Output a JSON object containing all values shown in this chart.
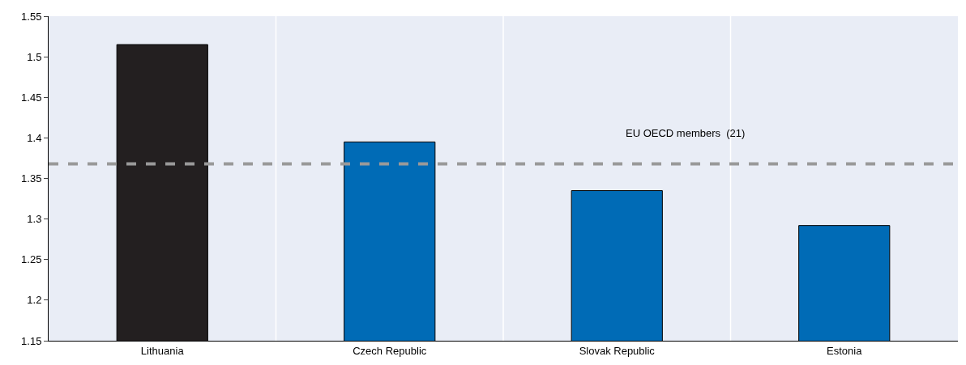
{
  "chart_data": {
    "type": "bar",
    "categories": [
      "Lithuania",
      "Czech Republic",
      "Slovak Republic",
      "Estonia"
    ],
    "values": [
      1.515,
      1.395,
      1.335,
      1.292
    ],
    "colors": [
      "#231f20",
      "#006bb6",
      "#006bb6",
      "#006bb6"
    ],
    "ylim": [
      1.15,
      1.55
    ],
    "yticks": [
      1.15,
      1.2,
      1.25,
      1.3,
      1.35,
      1.4,
      1.45,
      1.5,
      1.55
    ],
    "ref_lines": [
      {
        "axis": "y",
        "value": 1.368,
        "label": "EU OECD members  (21)",
        "color": "#999999",
        "line_style": "dashed"
      }
    ],
    "grid": "x",
    "legend": false
  }
}
